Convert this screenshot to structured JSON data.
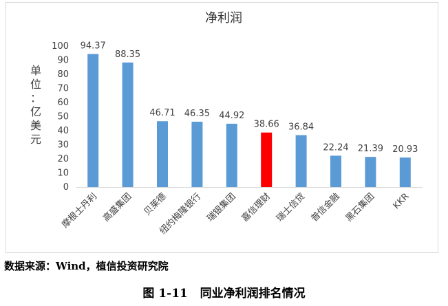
{
  "chart_data": {
    "type": "bar",
    "title": "净利润",
    "ylabel": "单位：亿美元",
    "xlabel": "",
    "ylim": [
      0,
      100
    ],
    "yticks": [
      0,
      10,
      20,
      30,
      40,
      50,
      60,
      70,
      80,
      90,
      100
    ],
    "grid": false,
    "categories": [
      "摩根士丹利",
      "高盛集团",
      "贝莱德",
      "纽约梅隆银行",
      "瑞银集团",
      "嘉信理财",
      "瑞士信贷",
      "普信金融",
      "黑石集团",
      "KKR"
    ],
    "values": [
      94.37,
      88.35,
      46.71,
      46.35,
      44.92,
      38.66,
      36.84,
      22.24,
      21.39,
      20.93
    ],
    "value_labels": [
      "94.37",
      "88.35",
      "46.71",
      "46.35",
      "44.92",
      "38.66",
      "36.84",
      "22.24",
      "21.39",
      "20.93"
    ],
    "bar_color": "#5b9bd5",
    "highlight_index": 5,
    "highlight_color": "#ff0000"
  },
  "source": "数据来源：Wind，植信投资研究院",
  "caption": "图 1-11   同业净利润排名情况"
}
